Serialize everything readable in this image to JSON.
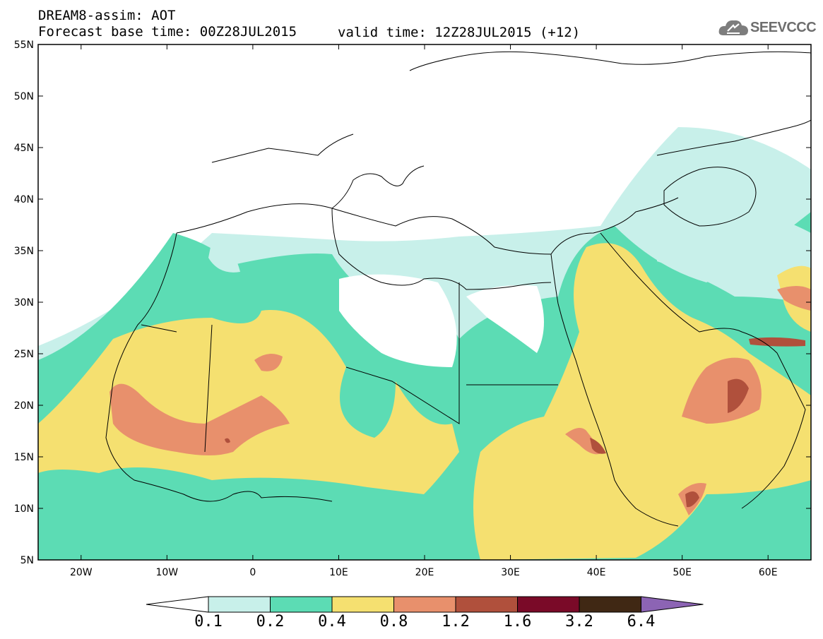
{
  "header": {
    "line1": "DREAM8-assim: AOT",
    "line2": "Forecast base time: 00Z28JUL2015",
    "line3": "valid time: 12Z28JUL2015 (+12)"
  },
  "logo": {
    "text": "SEEVCCC",
    "icon": "cloud-icon"
  },
  "map": {
    "lat_ticks": [
      "55N",
      "50N",
      "45N",
      "40N",
      "35N",
      "30N",
      "25N",
      "20N",
      "15N",
      "10N",
      "5N"
    ],
    "lon_ticks": [
      "20W",
      "10W",
      "0",
      "10E",
      "20E",
      "30E",
      "40E",
      "50E",
      "60E"
    ],
    "extent": {
      "lon": [
        -25,
        65
      ],
      "lat": [
        5,
        55
      ]
    }
  },
  "legend": {
    "levels": [
      "0.1",
      "0.2",
      "0.4",
      "0.8",
      "1.2",
      "1.6",
      "3.2",
      "6.4"
    ],
    "colors": [
      "#c8f0ea",
      "#5cdcb4",
      "#f5e070",
      "#e8906c",
      "#b0503c",
      "#7a0a28",
      "#402814",
      "#8c64b4"
    ],
    "under_color": "#ffffff"
  }
}
